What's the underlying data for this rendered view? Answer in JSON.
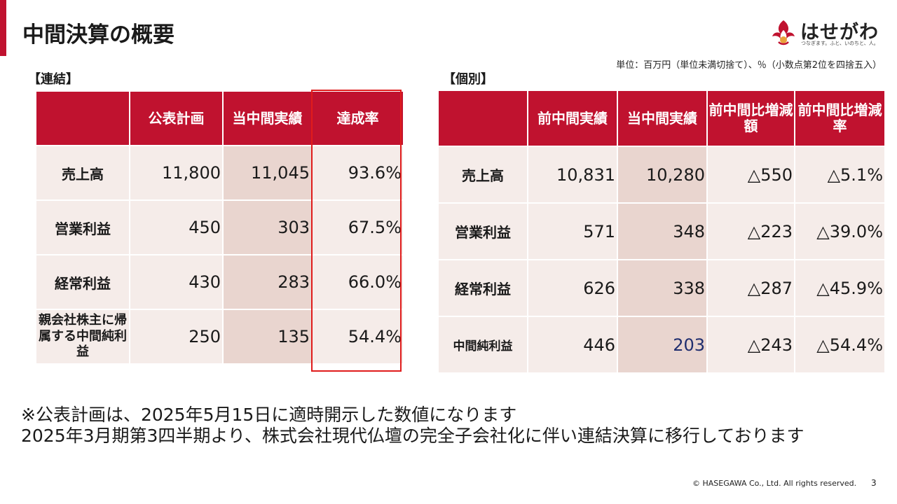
{
  "title": "中間決算の概要",
  "brand": {
    "name": "はせがわ",
    "tagline": "つなぎます。ふと、いのちと、人。"
  },
  "unit_note": "単位：百万円（単位未満切捨て）、％（小数点第2位を四捨五入）",
  "colors": {
    "accent": "#c0122f",
    "header": "#c0122f",
    "cell_light": "#f5ece9",
    "cell_dark": "#e9d5cf",
    "frame": "#e01c1c",
    "value_blue": "#1f2d6e"
  },
  "consolidated": {
    "label": "【連結】",
    "headers": [
      "",
      "公表計画",
      "当中間実績",
      "達成率"
    ],
    "rows": [
      {
        "label": "売上高",
        "plan": "11,800",
        "actual": "11,045",
        "rate": "93.6%"
      },
      {
        "label": "営業利益",
        "plan": "450",
        "actual": "303",
        "rate": "67.5%"
      },
      {
        "label": "経常利益",
        "plan": "430",
        "actual": "283",
        "rate": "66.0%"
      },
      {
        "label": "親会社株主に帰属する中間純利益",
        "plan": "250",
        "actual": "135",
        "rate": "54.4%"
      }
    ]
  },
  "individual": {
    "label": "【個別】",
    "headers": [
      "",
      "前中間実績",
      "当中間実績",
      "前中間比増減額",
      "前中間比増減率"
    ],
    "rows": [
      {
        "label": "売上高",
        "prev": "10,831",
        "actual": "10,280",
        "diff": "△550",
        "rate": "△5.1%"
      },
      {
        "label": "営業利益",
        "prev": "571",
        "actual": "348",
        "diff": "△223",
        "rate": "△39.0%"
      },
      {
        "label": "経常利益",
        "prev": "626",
        "actual": "338",
        "diff": "△287",
        "rate": "△45.9%"
      },
      {
        "label": "中間純利益",
        "prev": "446",
        "actual": "203",
        "diff": "△243",
        "rate": "△54.4%"
      }
    ]
  },
  "footnotes": [
    "※公表計画は、2025年5月15日に適時開示した数値になります",
    "2025年3月期第3四半期より、株式会社現代仏壇の完全子会社化に伴い連結決算に移行しております"
  ],
  "copyright": "© HASEGAWA Co., Ltd. All rights reserved.",
  "page_number": "3"
}
